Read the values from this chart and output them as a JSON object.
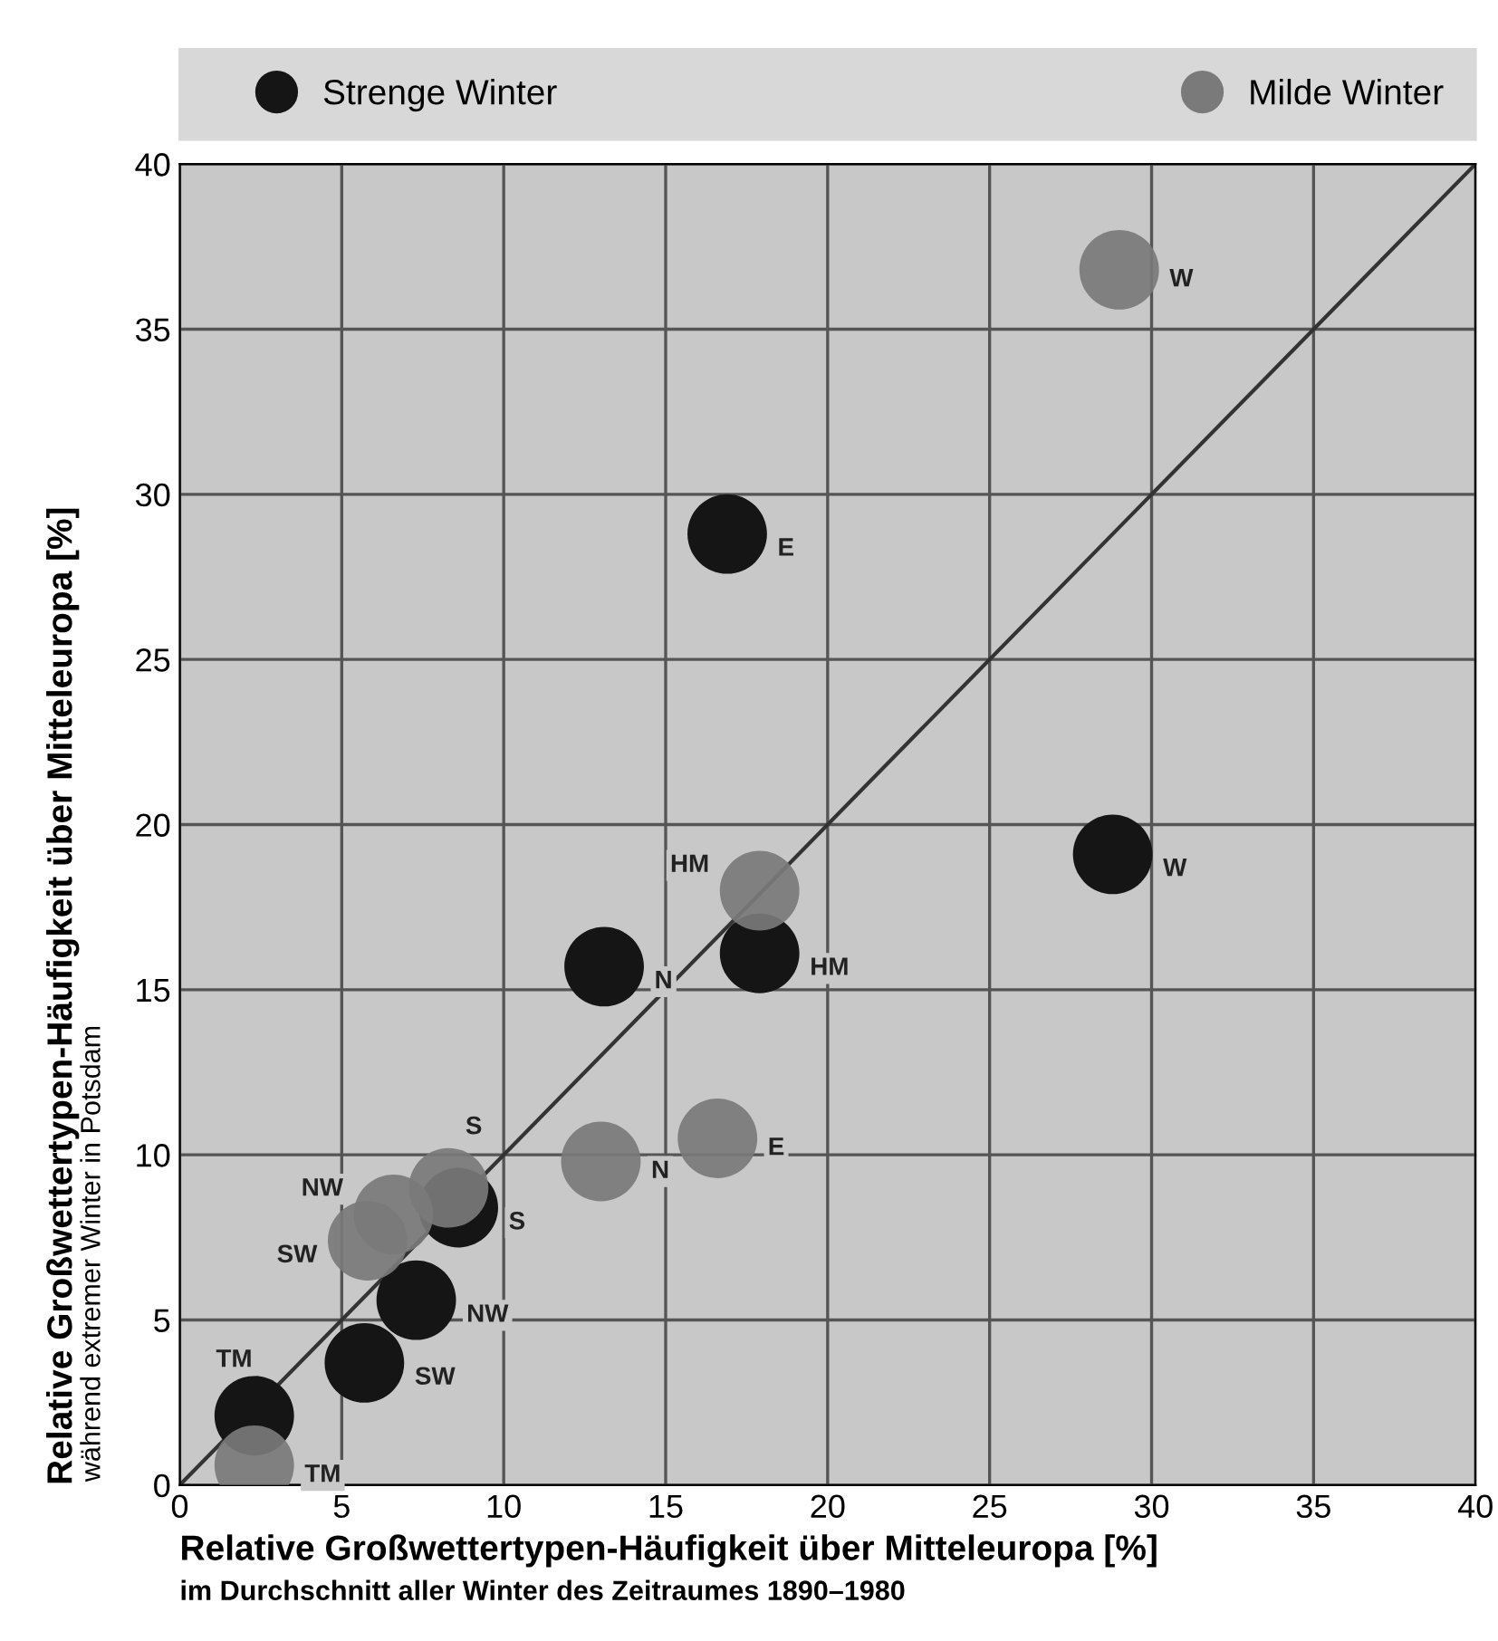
{
  "chart_data": {
    "type": "scatter",
    "xlabel": "Relative Großwettertypen-Häufigkeit über Mitteleuropa [%]",
    "ylabel": "Relative Großwettertypen-Häufigkeit über Mitteleuropa [%]",
    "series": [
      {
        "name": "Strenge Winter",
        "color": "#151515",
        "marker": "circle",
        "x": [
          16.9,
          28.8,
          17.9,
          13.1,
          8.6,
          7.3,
          5.7,
          2.3
        ],
        "values": [
          28.8,
          19.1,
          16.1,
          15.7,
          8.4,
          5.6,
          3.7,
          2.1
        ]
      },
      {
        "name": "Milde Winter",
        "color": "#7a7a7a",
        "marker": "circle",
        "x": [
          29.0,
          17.9,
          8.3,
          6.6,
          5.8,
          13.0,
          16.6,
          2.3
        ],
        "values": [
          36.8,
          18.0,
          9.0,
          8.2,
          7.4,
          9.8,
          10.5,
          0.6
        ]
      },
      {
        "type": "line",
        "color": "#333333",
        "x": [
          0,
          40
        ],
        "values": [
          0,
          40
        ]
      }
    ],
    "annotations": [
      "im Durchschnitt aller Winter des Zeitraumes 1890–1980",
      "während extremer Winter in Potsdam",
      {
        "text": "E",
        "x": 16.9,
        "y": 28.8
      },
      {
        "text": "W",
        "x": 28.8,
        "y": 19.1
      },
      {
        "text": "HM",
        "x": 17.9,
        "y": 16.1
      },
      {
        "text": "N",
        "x": 13.1,
        "y": 15.7
      },
      {
        "text": "S",
        "x": 8.6,
        "y": 8.4
      },
      {
        "text": "NW",
        "x": 7.3,
        "y": 5.6
      },
      {
        "text": "SW",
        "x": 5.7,
        "y": 3.7
      },
      {
        "text": "TM",
        "x": 2.3,
        "y": 2.1
      },
      {
        "text": "W",
        "x": 29.0,
        "y": 36.8
      },
      {
        "text": "HM",
        "x": 17.9,
        "y": 18.0
      },
      {
        "text": "S",
        "x": 8.3,
        "y": 9.0
      },
      {
        "text": "NW",
        "x": 6.6,
        "y": 8.2
      },
      {
        "text": "SW",
        "x": 5.8,
        "y": 7.4
      },
      {
        "text": "N",
        "x": 13.0,
        "y": 9.8
      },
      {
        "text": "E",
        "x": 16.6,
        "y": 10.5
      },
      {
        "text": "TM",
        "x": 2.3,
        "y": 0.6
      }
    ],
    "xlim": [
      0,
      40
    ],
    "ylim": [
      0,
      40
    ],
    "xticks": [
      0,
      5,
      10,
      15,
      20,
      25,
      30,
      35,
      40
    ],
    "yticks": [
      0,
      5,
      10,
      15,
      20,
      25,
      30,
      35,
      40
    ],
    "grid": true,
    "legend": "top"
  }
}
